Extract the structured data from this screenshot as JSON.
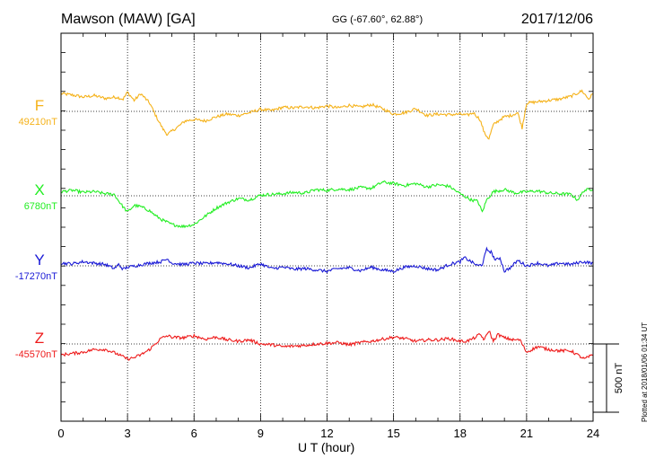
{
  "header": {
    "title": "Mawson (MAW)  [GA]",
    "coords": "GG (-67.60°,  62.88°)",
    "date": "2017/12/06"
  },
  "footer": {
    "plotted": "Plotted at 2018/01/06 01:34 UT"
  },
  "chart_data": {
    "type": "line",
    "xlabel": "U T (hour)",
    "xlim": [
      0,
      24
    ],
    "xticks": [
      0,
      3,
      6,
      9,
      12,
      15,
      18,
      21,
      24
    ],
    "grid": true,
    "scale_bar": {
      "label": "500 nT",
      "value_nT": 500
    },
    "series": [
      {
        "name": "F",
        "baseline_label": "49210nT",
        "baseline_nT": 49210,
        "color": "#f5b21a",
        "x": [
          0,
          0.5,
          1,
          1.5,
          2,
          2.5,
          2.8,
          3,
          3.3,
          3.6,
          4,
          4.3,
          4.6,
          4.8,
          5,
          5.3,
          5.6,
          6,
          6.5,
          7,
          7.5,
          8,
          8.5,
          9,
          9.5,
          10,
          10.5,
          11,
          11.5,
          12,
          12.5,
          13,
          13.5,
          14,
          14.5,
          15,
          15.5,
          16,
          16.5,
          17,
          17.5,
          18,
          18.3,
          18.6,
          18.9,
          19.1,
          19.3,
          19.5,
          19.8,
          20,
          20.3,
          20.6,
          20.8,
          21,
          21.5,
          22,
          22.5,
          23,
          23.5,
          23.8,
          24
        ],
        "y": [
          130,
          120,
          105,
          115,
          95,
          105,
          90,
          140,
          80,
          130,
          60,
          -40,
          -130,
          -170,
          -145,
          -110,
          -70,
          -60,
          -70,
          -40,
          -20,
          -30,
          -10,
          15,
          5,
          30,
          25,
          35,
          25,
          40,
          25,
          45,
          30,
          50,
          20,
          -20,
          -10,
          20,
          -30,
          -20,
          -25,
          -20,
          -30,
          -10,
          -60,
          -160,
          -200,
          -100,
          -60,
          -40,
          -30,
          -10,
          -120,
          60,
          70,
          80,
          90,
          110,
          150,
          90,
          130
        ]
      },
      {
        "name": "X",
        "baseline_label": "6780nT",
        "baseline_nT": 6780,
        "color": "#22ee22",
        "x": [
          0,
          0.5,
          1,
          1.5,
          2,
          2.4,
          2.7,
          3,
          3.3,
          3.6,
          4,
          4.3,
          4.6,
          5,
          5.5,
          6,
          6.5,
          7,
          7.5,
          8,
          8.5,
          9,
          9.5,
          10,
          10.5,
          11,
          11.5,
          12,
          12.5,
          13,
          13.5,
          14,
          14.5,
          15,
          15.5,
          16,
          16.5,
          17,
          17.5,
          18,
          18.5,
          18.8,
          19,
          19.2,
          19.5,
          20,
          20.5,
          21,
          21.5,
          22,
          22.5,
          23,
          23.3,
          23.6,
          24
        ],
        "y": [
          30,
          40,
          25,
          30,
          15,
          10,
          -60,
          -120,
          -70,
          -80,
          -110,
          -150,
          -180,
          -210,
          -225,
          -210,
          -150,
          -90,
          -50,
          -20,
          -30,
          5,
          10,
          15,
          25,
          20,
          45,
          40,
          50,
          45,
          60,
          55,
          100,
          90,
          75,
          90,
          65,
          80,
          70,
          15,
          -30,
          -40,
          -120,
          -30,
          30,
          45,
          20,
          30,
          35,
          20,
          15,
          10,
          -30,
          40,
          50
        ]
      },
      {
        "name": "Y",
        "baseline_label": "-17270nT",
        "baseline_nT": -17270,
        "color": "#1a1ad6",
        "x": [
          0,
          0.5,
          1,
          1.5,
          2,
          2.4,
          2.6,
          2.8,
          3,
          3.5,
          4,
          4.5,
          4.8,
          5,
          5.5,
          6,
          6.5,
          7,
          7.5,
          8,
          8.5,
          9,
          9.5,
          10,
          10.5,
          11,
          11.5,
          12,
          12.5,
          13,
          13.5,
          14,
          14.5,
          15,
          15.5,
          16,
          16.5,
          17,
          17.5,
          18,
          18.2,
          18.4,
          18.6,
          18.8,
          19,
          19.2,
          19.4,
          19.6,
          19.8,
          20,
          20.3,
          20.6,
          21,
          21.5,
          22,
          22.5,
          23,
          23.5,
          24
        ],
        "y": [
          20,
          15,
          30,
          20,
          10,
          -20,
          10,
          -25,
          -10,
          5,
          20,
          30,
          50,
          20,
          10,
          20,
          15,
          25,
          15,
          0,
          -15,
          15,
          -20,
          -10,
          -25,
          -20,
          -30,
          -40,
          -20,
          -15,
          -35,
          -10,
          -30,
          -40,
          -10,
          0,
          -20,
          -30,
          10,
          30,
          60,
          40,
          20,
          0,
          10,
          120,
          100,
          40,
          60,
          -40,
          -10,
          40,
          0,
          20,
          0,
          20,
          10,
          30,
          20
        ]
      },
      {
        "name": "Z",
        "baseline_label": "-45570nT",
        "baseline_nT": -45570,
        "color": "#ee1a1a",
        "x": [
          0,
          0.5,
          1,
          1.5,
          2,
          2.5,
          3,
          3.3,
          3.6,
          4,
          4.5,
          4.8,
          5,
          5.5,
          6,
          6.5,
          7,
          7.5,
          8,
          8.5,
          9,
          9.5,
          10,
          10.5,
          11,
          11.5,
          12,
          12.5,
          13,
          13.5,
          14,
          14.5,
          15,
          15.5,
          16,
          16.5,
          17,
          17.5,
          18,
          18.3,
          18.6,
          18.9,
          19.1,
          19.3,
          19.5,
          19.7,
          20,
          20.4,
          20.7,
          21,
          21.5,
          22,
          22.5,
          23,
          23.3,
          23.6,
          24
        ],
        "y": [
          -80,
          -70,
          -60,
          -40,
          -40,
          -70,
          -110,
          -100,
          -80,
          -40,
          40,
          60,
          50,
          45,
          60,
          35,
          50,
          30,
          20,
          30,
          0,
          -5,
          -20,
          -15,
          -10,
          0,
          5,
          10,
          -5,
          10,
          20,
          35,
          50,
          40,
          20,
          30,
          30,
          40,
          20,
          20,
          40,
          70,
          30,
          100,
          20,
          70,
          45,
          30,
          30,
          -60,
          -20,
          -40,
          -50,
          -50,
          -80,
          -110,
          -80
        ]
      }
    ]
  }
}
